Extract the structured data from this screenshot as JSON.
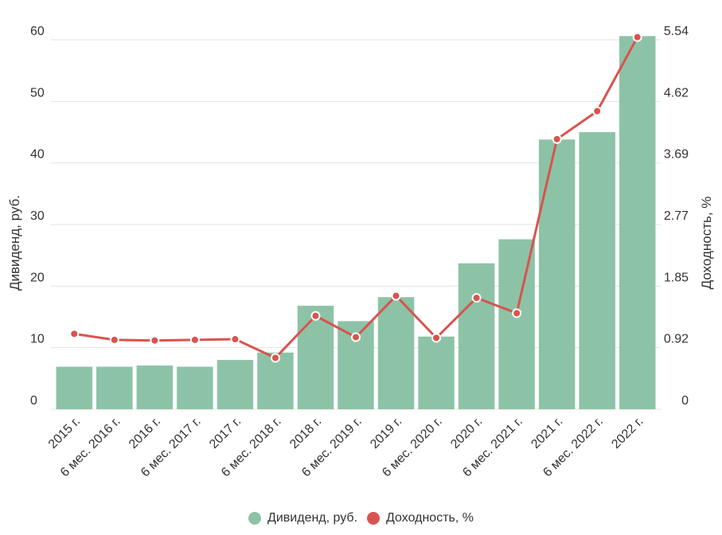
{
  "chart_data": {
    "type": "bar+line",
    "categories": [
      "2015 г.",
      "6 мес. 2016 г.",
      "2016 г.",
      "6 мес. 2017 г.",
      "2017 г.",
      "6 мес. 2018 г.",
      "2018 г.",
      "6 мес. 2019 г.",
      "2019 г.",
      "6 мес. 2020 г.",
      "2020 г.",
      "6 мес. 2021 г.",
      "2021 г.",
      "6 мес. 2022 г.",
      "2022 г."
    ],
    "series": [
      {
        "name": "Дивиденд, руб.",
        "type": "bar",
        "axis": "left",
        "color": "#8cc3a6",
        "values": [
          6.9,
          6.9,
          7.1,
          6.9,
          8.0,
          9.2,
          16.8,
          14.3,
          18.2,
          11.8,
          23.7,
          27.6,
          43.8,
          45.0,
          60.6
        ]
      },
      {
        "name": "Доходность, %",
        "type": "line",
        "axis": "right",
        "color": "#d9534f",
        "values": [
          1.13,
          1.04,
          1.03,
          1.04,
          1.05,
          0.77,
          1.4,
          1.08,
          1.7,
          1.07,
          1.67,
          1.44,
          4.05,
          4.47,
          5.58
        ]
      }
    ],
    "y_left": {
      "label": "Дивиденд, руб.",
      "ticks": [
        "0",
        "10",
        "20",
        "30",
        "40",
        "50",
        "60"
      ],
      "min": 0,
      "max": 60,
      "step": 10
    },
    "y_right": {
      "label": "Доходность, %",
      "ticks": [
        "0",
        "0.92",
        "1.85",
        "2.77",
        "3.69",
        "4.62",
        "5.54"
      ],
      "min": 0,
      "max": 5.54
    },
    "legend": [
      {
        "label": "Дивиденд, руб.",
        "color": "#8cc3a6"
      },
      {
        "label": "Доходность, %",
        "color": "#d9534f"
      }
    ],
    "grid": true,
    "legend_position": "bottom-center"
  }
}
